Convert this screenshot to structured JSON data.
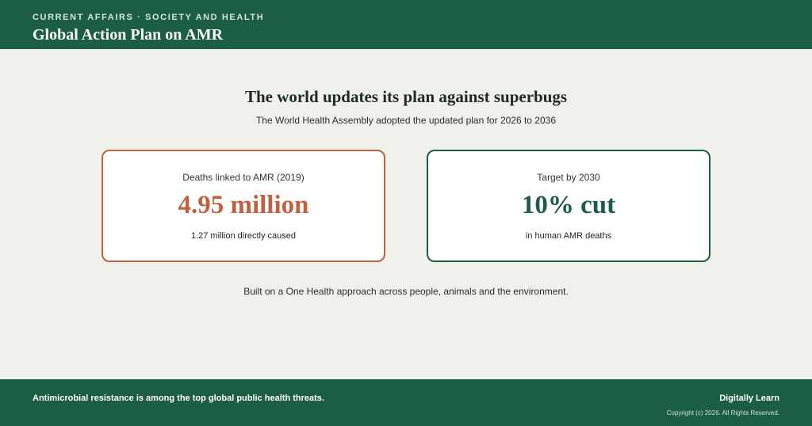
{
  "header": {
    "kicker": "CURRENT AFFAIRS · SOCIETY AND HEALTH",
    "title": "Global Action Plan on AMR"
  },
  "main": {
    "headline": "The world updates its plan against superbugs",
    "subhead": "The World Health Assembly adopted the updated plan for 2026 to 2036",
    "cards": [
      {
        "label": "Deaths linked to AMR (2019)",
        "value": "4.95 million",
        "note": "1.27 million directly caused",
        "accent": "#c0623f"
      },
      {
        "label": "Target by 2030",
        "value": "10% cut",
        "note": "in human AMR deaths",
        "accent": "#1b5e43"
      }
    ],
    "foundation": "Built on a One Health approach across people, animals and the environment."
  },
  "footer": {
    "text": "Antimicrobial resistance is among the top global public health threats.",
    "brand": "Digitally Learn",
    "copyright": "Copyright (c) 2026. All Rights Reserved."
  },
  "colors": {
    "brand_green": "#1b5e43",
    "accent_orange": "#c0623f",
    "background": "#f1f1ec"
  }
}
